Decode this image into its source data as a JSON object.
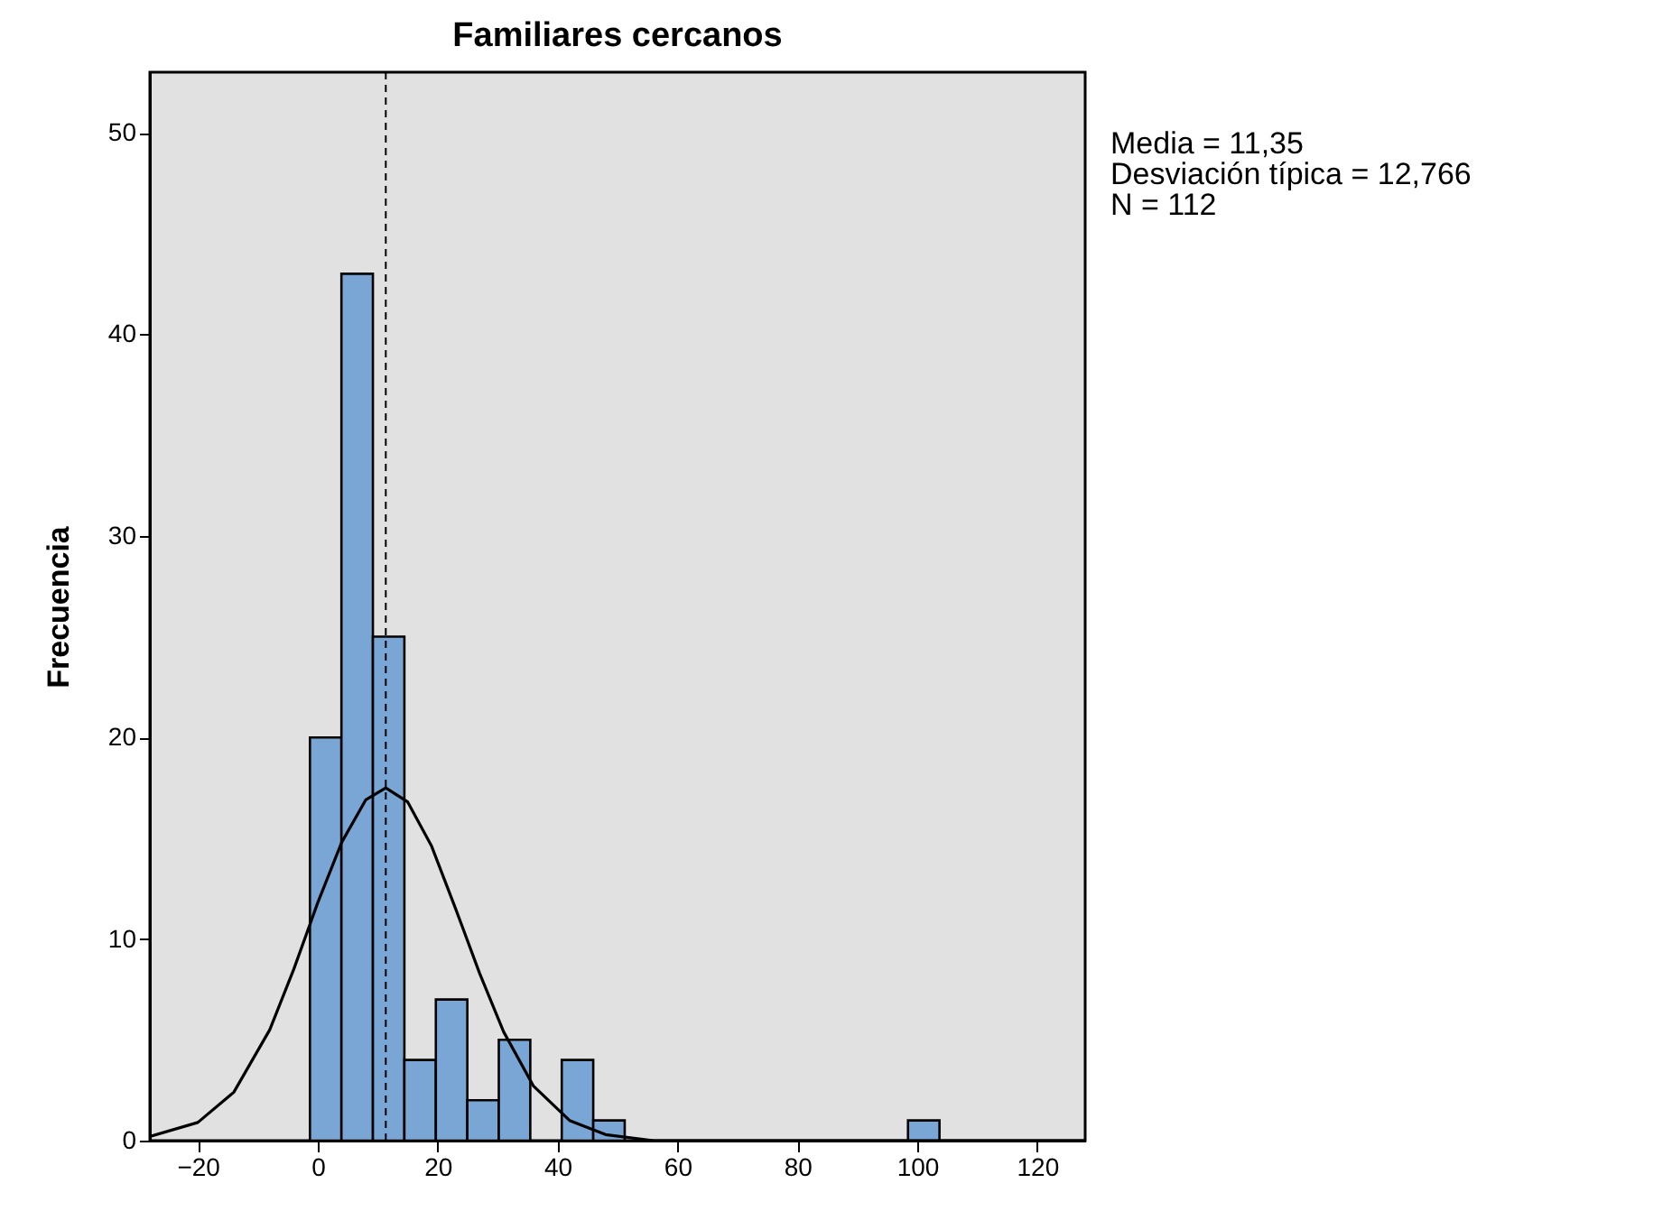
{
  "chart_data": {
    "type": "histogram",
    "title": "Familiares cercanos",
    "ylabel": "Frecuencia",
    "bins": [
      -1.3,
      3.95,
      9.2,
      14.45,
      19.7,
      24.95,
      30.2,
      35.45,
      40.7,
      45.95,
      51.2,
      56.45,
      61.7,
      66.95,
      72.2,
      77.45,
      82.7,
      87.95,
      93.2,
      98.45,
      103.7
    ],
    "series": [
      {
        "color": "#79a6d5",
        "values": [
          20,
          43,
          25,
          4,
          7,
          2,
          5,
          0,
          4,
          1,
          0,
          0,
          0,
          0,
          0,
          0,
          0,
          0,
          0,
          1
        ]
      },
      {
        "type": "line",
        "color": "#000000",
        "x": [
          -28,
          -20,
          -14,
          -8,
          -4,
          0,
          4,
          8,
          11.35,
          15,
          19,
          23,
          27,
          31,
          36,
          42,
          48,
          56,
          70,
          128
        ],
        "values": [
          0.2,
          0.9,
          2.4,
          5.5,
          8.5,
          11.8,
          14.8,
          16.9,
          17.5,
          16.8,
          14.6,
          11.5,
          8.3,
          5.4,
          2.7,
          1.0,
          0.3,
          0.0,
          0,
          0
        ]
      }
    ],
    "xlim": [
      -28,
      128
    ],
    "xticks": [
      -20,
      0,
      20,
      40,
      60,
      80,
      100,
      120
    ],
    "ylim": [
      0,
      53
    ],
    "yticks": [
      0,
      10,
      20,
      30,
      40,
      50
    ],
    "ref_lines": [
      {
        "axis": "x",
        "value": 11.35,
        "color": "#000000",
        "line_style": "dashed"
      }
    ],
    "annotations": [
      "Media = 11,35",
      "Desviación típica = 12,766",
      "N = 112"
    ],
    "grid": false
  }
}
